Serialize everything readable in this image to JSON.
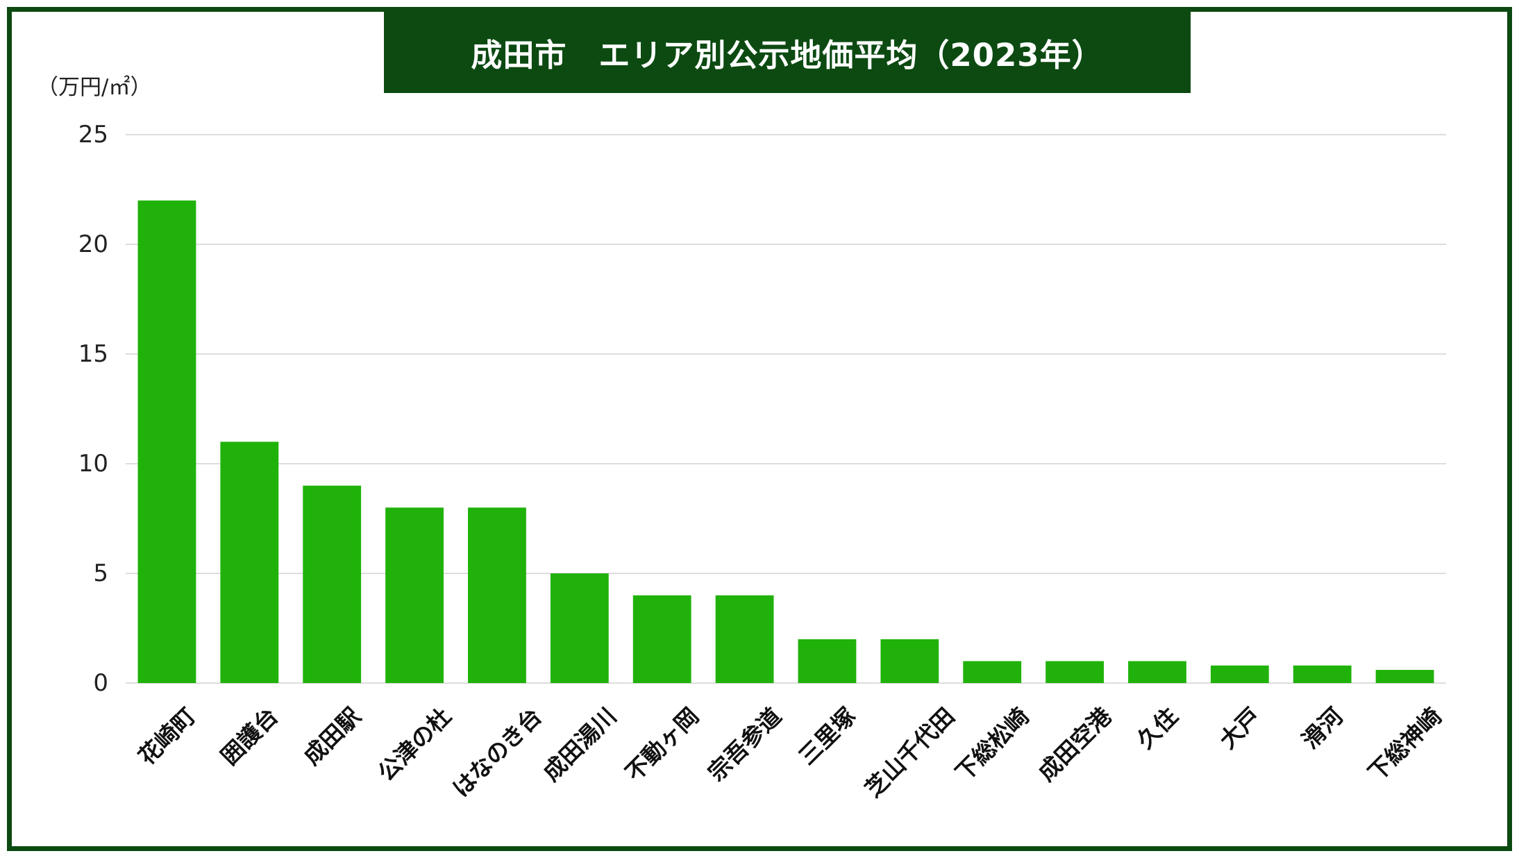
{
  "colors": {
    "frame": "#0c4a12",
    "bar": "#20b20a",
    "grid": "#d2d2d2",
    "text": "#222222"
  },
  "chart_data": {
    "type": "bar",
    "title": "成田市　エリア別公示地価平均（2023年）",
    "ylabel": "（万円/㎡）",
    "xlabel": "",
    "categories": [
      "花崎町",
      "囲護台",
      "成田駅",
      "公津の杜",
      "はなのき台",
      "成田湯川",
      "不動ヶ岡",
      "宗吾参道",
      "三里塚",
      "芝山千代田",
      "下総松崎",
      "成田空港",
      "久住",
      "大戸",
      "滑河",
      "下総神崎"
    ],
    "values": [
      22,
      11,
      9,
      8,
      8,
      5,
      4,
      4,
      2,
      2,
      1,
      1,
      1,
      0.8,
      0.8,
      0.6
    ],
    "ylim": [
      0,
      25
    ],
    "yticks": [
      0,
      5,
      10,
      15,
      20,
      25
    ],
    "grid": true
  }
}
